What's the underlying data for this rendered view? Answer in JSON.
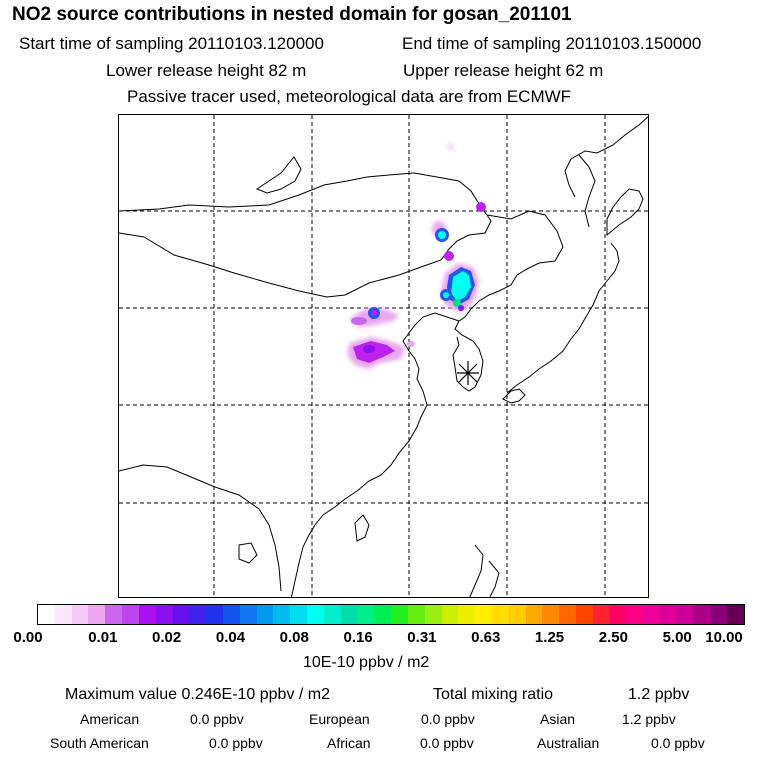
{
  "header": {
    "title": "NO2 source contributions in nested domain for gosan_201101",
    "start_label": "Start time of sampling 20110103.120000",
    "end_label": "End time of sampling 20110103.150000",
    "lower_label": "Lower release height   82 m",
    "upper_label": "Upper release height   62 m",
    "tracer_label": "Passive tracer used, meteorological data are from ECMWF"
  },
  "colorbar": {
    "colors": [
      "#ffffff",
      "#fbe6fb",
      "#f5c8f5",
      "#eda8ef",
      "#cc66ee",
      "#bb44ee",
      "#aa11ee",
      "#8811ee",
      "#6611ee",
      "#4422ee",
      "#2233ee",
      "#1155ee",
      "#1177ee",
      "#0099ee",
      "#00bbee",
      "#00ddee",
      "#00ffee",
      "#00eecc",
      "#00ddaa",
      "#00ee88",
      "#00ee55",
      "#22ee22",
      "#66ee11",
      "#99ee11",
      "#ccee00",
      "#eeee00",
      "#ffee00",
      "#ffdd00",
      "#ffcc00",
      "#ffaa00",
      "#ff8800",
      "#ff6600",
      "#ff4400",
      "#ff2233",
      "#ff0066",
      "#ff0088",
      "#ee0099",
      "#dd0099",
      "#cc0099",
      "#aa0088",
      "#880077",
      "#660055"
    ],
    "tick_labels": [
      "0.00",
      "0.01",
      "0.02",
      "0.04",
      "0.08",
      "0.16",
      "0.31",
      "0.63",
      "1.25",
      "2.50",
      "5.00",
      "10.00"
    ],
    "units": "10E-10 ppbv / m2"
  },
  "stats": {
    "max_label": "Maximum value  0.246E-10 ppbv / m2",
    "total_label": "Total mixing ratio",
    "total_value": "1.2 ppbv"
  },
  "regions": [
    {
      "name": "American",
      "value": "0.0 ppbv"
    },
    {
      "name": "European",
      "value": "0.0 ppbv"
    },
    {
      "name": "Asian",
      "value": "1.2 ppbv"
    },
    {
      "name": "South American",
      "value": "0.0 ppbv"
    },
    {
      "name": "African",
      "value": "0.0 ppbv"
    },
    {
      "name": "Australian",
      "value": "0.0 ppbv"
    }
  ],
  "colors": {
    "plume_light": "#e8a8f0",
    "plume_violet": "#bb22ee",
    "plume_blue": "#2255ee",
    "plume_cyan": "#00ffee",
    "plume_green": "#00dd88"
  }
}
